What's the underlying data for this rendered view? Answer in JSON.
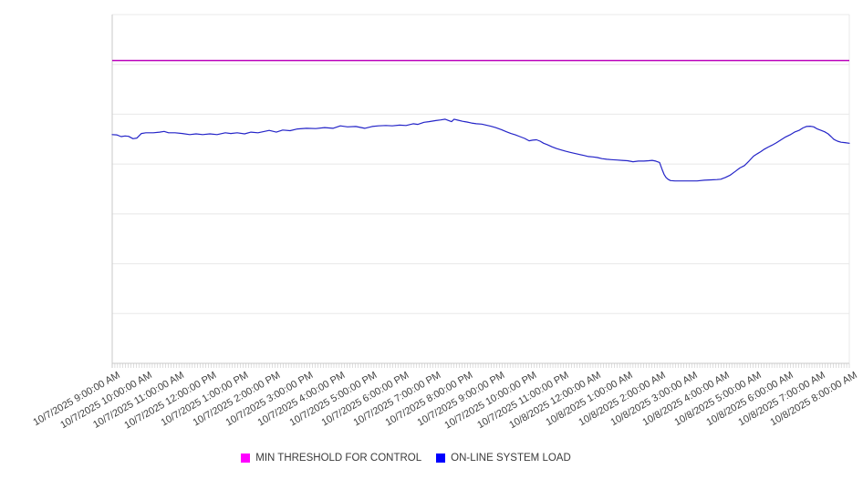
{
  "chart_data": {
    "type": "line",
    "title": "",
    "xlabel": "",
    "ylabel": "",
    "y_axis": {
      "tick_labels_visible": false,
      "range": [
        0,
        100
      ],
      "gridline_divisions": 7,
      "grid_on": true
    },
    "x_axis": {
      "span_hours": 23,
      "minor_ticks_per_hour": 12,
      "label_rotation_deg": -30,
      "tick_labels": [
        "10/7/2025 9:00:00 AM",
        "10/7/2025 10:00:00 AM",
        "10/7/2025 11:00:00 AM",
        "10/7/2025 12:00:00 PM",
        "10/7/2025 1:00:00 PM",
        "10/7/2025 2:00:00 PM",
        "10/7/2025 3:00:00 PM",
        "10/7/2025 4:00:00 PM",
        "10/7/2025 5:00:00 PM",
        "10/7/2025 6:00:00 PM",
        "10/7/2025 7:00:00 PM",
        "10/7/2025 8:00:00 PM",
        "10/7/2025 9:00:00 PM",
        "10/7/2025 10:00:00 PM",
        "10/7/2025 11:00:00 PM",
        "10/8/2025 12:00:00 AM",
        "10/8/2025 1:00:00 AM",
        "10/8/2025 2:00:00 AM",
        "10/8/2025 3:00:00 AM",
        "10/8/2025 4:00:00 AM",
        "10/8/2025 5:00:00 AM",
        "10/8/2025 6:00:00 AM",
        "10/8/2025 7:00:00 AM",
        "10/8/2025 8:00:00 AM"
      ]
    },
    "legend_position": "bottom-center",
    "series": [
      {
        "name": "MIN THRESHOLD FOR CONTROL",
        "type": "horizontal-threshold-line",
        "color": "#bb00bb",
        "swatch_color": "#ff00ff",
        "value": 86.8
      },
      {
        "name": "ON-LINE SYSTEM LOAD",
        "type": "line",
        "color": "#2424c8",
        "swatch_color": "#0000ff",
        "points_format": "[hours_after_first_tick, relative_load_0_100]",
        "points": [
          [
            0.0,
            65.6
          ],
          [
            0.14,
            65.5
          ],
          [
            0.28,
            65.0
          ],
          [
            0.4,
            65.2
          ],
          [
            0.51,
            65.1
          ],
          [
            0.65,
            64.4
          ],
          [
            0.77,
            64.6
          ],
          [
            0.91,
            65.9
          ],
          [
            1.05,
            66.1
          ],
          [
            1.28,
            66.1
          ],
          [
            1.48,
            66.3
          ],
          [
            1.62,
            66.5
          ],
          [
            1.76,
            66.1
          ],
          [
            1.96,
            66.1
          ],
          [
            2.19,
            65.9
          ],
          [
            2.42,
            65.6
          ],
          [
            2.62,
            65.8
          ],
          [
            2.82,
            65.6
          ],
          [
            3.05,
            65.8
          ],
          [
            3.27,
            65.6
          ],
          [
            3.53,
            66.1
          ],
          [
            3.7,
            65.9
          ],
          [
            3.9,
            66.1
          ],
          [
            4.13,
            65.8
          ],
          [
            4.33,
            66.3
          ],
          [
            4.55,
            66.1
          ],
          [
            4.75,
            66.5
          ],
          [
            4.9,
            66.8
          ],
          [
            5.12,
            66.3
          ],
          [
            5.32,
            66.9
          ],
          [
            5.55,
            66.7
          ],
          [
            5.78,
            67.2
          ],
          [
            6.06,
            67.4
          ],
          [
            6.35,
            67.3
          ],
          [
            6.63,
            67.6
          ],
          [
            6.89,
            67.4
          ],
          [
            7.12,
            68.1
          ],
          [
            7.34,
            67.8
          ],
          [
            7.6,
            67.9
          ],
          [
            7.88,
            67.4
          ],
          [
            8.11,
            67.9
          ],
          [
            8.31,
            68.1
          ],
          [
            8.54,
            68.2
          ],
          [
            8.74,
            68.1
          ],
          [
            8.97,
            68.3
          ],
          [
            9.17,
            68.2
          ],
          [
            9.39,
            68.7
          ],
          [
            9.54,
            68.5
          ],
          [
            9.73,
            69.1
          ],
          [
            9.88,
            69.3
          ],
          [
            10.1,
            69.6
          ],
          [
            10.25,
            69.8
          ],
          [
            10.39,
            70.0
          ],
          [
            10.5,
            69.6
          ],
          [
            10.59,
            69.3
          ],
          [
            10.67,
            70.0
          ],
          [
            10.79,
            69.7
          ],
          [
            10.93,
            69.4
          ],
          [
            11.07,
            69.2
          ],
          [
            11.21,
            68.9
          ],
          [
            11.36,
            68.7
          ],
          [
            11.53,
            68.6
          ],
          [
            11.67,
            68.3
          ],
          [
            11.81,
            68.0
          ],
          [
            11.96,
            67.6
          ],
          [
            12.15,
            67.0
          ],
          [
            12.3,
            66.4
          ],
          [
            12.44,
            65.9
          ],
          [
            12.58,
            65.5
          ],
          [
            12.72,
            65.0
          ],
          [
            12.87,
            64.5
          ],
          [
            13.01,
            63.8
          ],
          [
            13.12,
            64.0
          ],
          [
            13.24,
            64.1
          ],
          [
            13.35,
            63.7
          ],
          [
            13.46,
            63.1
          ],
          [
            13.58,
            62.7
          ],
          [
            13.72,
            62.1
          ],
          [
            13.86,
            61.6
          ],
          [
            14.0,
            61.2
          ],
          [
            14.15,
            60.8
          ],
          [
            14.29,
            60.5
          ],
          [
            14.43,
            60.2
          ],
          [
            14.57,
            59.9
          ],
          [
            14.72,
            59.6
          ],
          [
            14.86,
            59.3
          ],
          [
            15.0,
            59.2
          ],
          [
            15.14,
            59.0
          ],
          [
            15.28,
            58.7
          ],
          [
            15.43,
            58.5
          ],
          [
            15.57,
            58.4
          ],
          [
            15.74,
            58.3
          ],
          [
            15.91,
            58.2
          ],
          [
            16.08,
            58.1
          ],
          [
            16.25,
            57.8
          ],
          [
            16.42,
            58.0
          ],
          [
            16.59,
            58.0
          ],
          [
            16.74,
            58.1
          ],
          [
            16.85,
            58.2
          ],
          [
            16.96,
            58.0
          ],
          [
            17.08,
            57.6
          ],
          [
            17.16,
            55.6
          ],
          [
            17.22,
            54.2
          ],
          [
            17.28,
            53.3
          ],
          [
            17.34,
            52.8
          ],
          [
            17.42,
            52.4
          ],
          [
            17.56,
            52.3
          ],
          [
            17.79,
            52.3
          ],
          [
            18.02,
            52.3
          ],
          [
            18.25,
            52.3
          ],
          [
            18.47,
            52.5
          ],
          [
            18.7,
            52.6
          ],
          [
            18.87,
            52.7
          ],
          [
            18.99,
            52.8
          ],
          [
            19.13,
            53.3
          ],
          [
            19.27,
            53.9
          ],
          [
            19.44,
            55.0
          ],
          [
            19.58,
            56.0
          ],
          [
            19.73,
            56.7
          ],
          [
            19.87,
            58.0
          ],
          [
            20.01,
            59.4
          ],
          [
            20.13,
            60.1
          ],
          [
            20.24,
            60.7
          ],
          [
            20.35,
            61.4
          ],
          [
            20.47,
            62.0
          ],
          [
            20.58,
            62.5
          ],
          [
            20.72,
            63.2
          ],
          [
            20.87,
            64.1
          ],
          [
            21.01,
            64.9
          ],
          [
            21.15,
            65.5
          ],
          [
            21.29,
            66.3
          ],
          [
            21.43,
            66.8
          ],
          [
            21.55,
            67.5
          ],
          [
            21.66,
            67.9
          ],
          [
            21.78,
            68.0
          ],
          [
            21.89,
            67.8
          ],
          [
            22.0,
            67.2
          ],
          [
            22.12,
            66.8
          ],
          [
            22.23,
            66.4
          ],
          [
            22.34,
            65.8
          ],
          [
            22.43,
            65.0
          ],
          [
            22.52,
            64.2
          ],
          [
            22.63,
            63.7
          ],
          [
            22.74,
            63.4
          ],
          [
            22.86,
            63.3
          ],
          [
            23.0,
            63.1
          ]
        ]
      }
    ],
    "style_colors": {
      "gridline": "#e8e8e8",
      "axis": "#c8c8c8",
      "minor_tick": "#c8c8c8",
      "axis_label_text": "#3f3f3f",
      "legend_text": "#3a3a3a",
      "background": "#ffffff"
    }
  }
}
